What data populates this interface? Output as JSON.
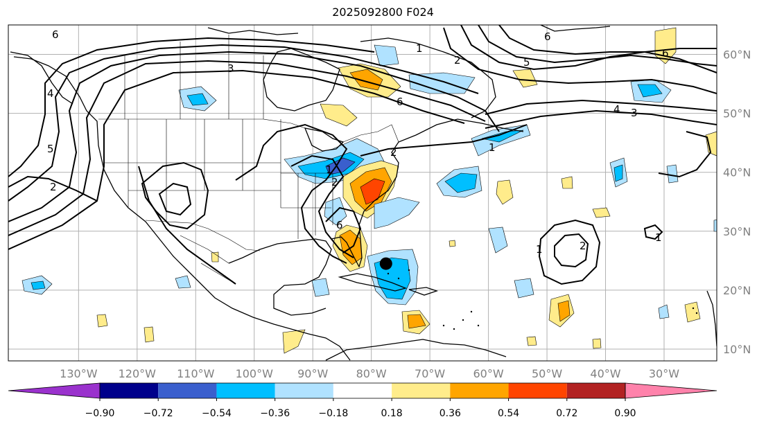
{
  "title": "2025092800 F024",
  "map": {
    "projection": "PlateCarree",
    "lon_range": [
      -142,
      -21
    ],
    "lat_range": [
      8,
      65
    ],
    "lon_ticks": [
      {
        "lon": -130,
        "label": "130°W"
      },
      {
        "lon": -120,
        "label": "120°W"
      },
      {
        "lon": -110,
        "label": "110°W"
      },
      {
        "lon": -100,
        "label": "100°W"
      },
      {
        "lon": -90,
        "label": "90°W"
      },
      {
        "lon": -80,
        "label": "80°W"
      },
      {
        "lon": -70,
        "label": "70°W"
      },
      {
        "lon": -60,
        "label": "60°W"
      },
      {
        "lon": -50,
        "label": "50°W"
      },
      {
        "lon": -40,
        "label": "40°W"
      },
      {
        "lon": -30,
        "label": "30°W"
      }
    ],
    "lat_ticks": [
      {
        "lat": 60,
        "label": "60°N"
      },
      {
        "lat": 50,
        "label": "50°N"
      },
      {
        "lat": 40,
        "label": "40°N"
      },
      {
        "lat": 30,
        "label": "30°N"
      },
      {
        "lat": 20,
        "label": "20°N"
      },
      {
        "lat": 10,
        "label": "10°N"
      }
    ],
    "gridlines": true,
    "storm_marker": {
      "lon": -77.5,
      "lat": 24.5
    }
  },
  "colorbar": {
    "colors": [
      "#9a32cd",
      "#00008b",
      "#3a5fcd",
      "#00bfff",
      "#b0e2ff",
      "#ffffff",
      "#ffec8b",
      "#ffa500",
      "#ff4500",
      "#b22222",
      "#ff82ab"
    ],
    "ticks": [
      "−0.90",
      "−0.72",
      "−0.54",
      "−0.36",
      "−0.18",
      "0.18",
      "0.36",
      "0.54",
      "0.72",
      "0.90"
    ]
  },
  "contour_labels": [
    "6",
    "6",
    "6",
    "6",
    "4",
    "3",
    "2",
    "1",
    "1",
    "1",
    "2",
    "2",
    "2",
    "3",
    "5",
    "4",
    "5",
    "6",
    "1",
    "2",
    "1"
  ]
}
